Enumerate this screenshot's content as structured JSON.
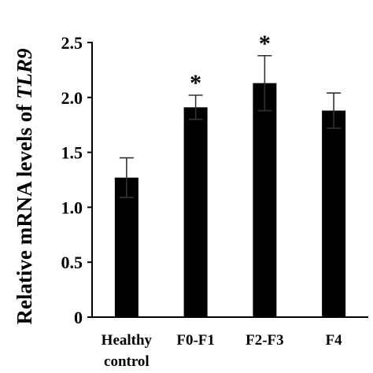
{
  "chart_data": {
    "type": "bar",
    "ylabel_prefix": "Relative mRNA levels of ",
    "ylabel_gene": "TLR9",
    "xlabel": "",
    "ylim": [
      0,
      2.5
    ],
    "yticks": [
      "0",
      "0.5",
      "1.0",
      "1.5",
      "2.0",
      "2.5"
    ],
    "grid": false,
    "categories": [
      {
        "lines": [
          "Healthy",
          "control"
        ]
      },
      {
        "lines": [
          "F0-F1"
        ]
      },
      {
        "lines": [
          "F2-F3"
        ]
      },
      {
        "lines": [
          "F4"
        ]
      }
    ],
    "series": [
      {
        "values": [
          1.27,
          1.91,
          2.13,
          1.88
        ],
        "errors": [
          0.18,
          0.11,
          0.25,
          0.16
        ],
        "significance": [
          "",
          "*",
          "*",
          ""
        ]
      }
    ],
    "colors": {
      "bar": "#000000",
      "axis": "#000000"
    }
  }
}
